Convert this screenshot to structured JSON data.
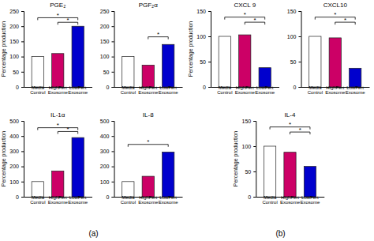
{
  "chart_data": [
    {
      "type": "bar",
      "title": "PGE₂",
      "categories": [
        "Media\nControl",
        "HighFert\nExosome",
        "LowFert\nExosome"
      ],
      "values": [
        100,
        110,
        200
      ],
      "colors": [
        "#ffffff",
        "#cc0066",
        "#0000cd"
      ],
      "ylim": [
        0,
        250
      ],
      "yticks": [
        0,
        50,
        100,
        150,
        200,
        250
      ],
      "ylabel": "Percentage production",
      "annotations": [
        {
          "text": "*",
          "x_from": "Media\nControl",
          "x_to": "LowFert\nExosome",
          "y": 228
        },
        {
          "text": "*",
          "x_from": "HighFert\nExosome",
          "x_to": "LowFert\nExosome",
          "y": 213
        },
        {
          "text": "(a)"
        }
      ]
    },
    {
      "type": "bar",
      "title": "PGF₂α",
      "categories": [
        "Media\nControl",
        "HighFert\nExosome",
        "LowFert\nExosome"
      ],
      "values": [
        100,
        72,
        140
      ],
      "colors": [
        "#ffffff",
        "#cc0066",
        "#0000cd"
      ],
      "ylim": [
        0,
        250
      ],
      "yticks": [
        0,
        50,
        100,
        150,
        200,
        250
      ],
      "annotations": [
        {
          "text": "*",
          "x_from": "HighFert\nExosome",
          "x_to": "LowFert\nExosome",
          "y": 165
        }
      ]
    },
    {
      "type": "bar",
      "title": "IL-1α",
      "categories": [
        "Media\nControl",
        "HighFert\nExosome",
        "LowFert\nExosome"
      ],
      "values": [
        100,
        170,
        390
      ],
      "colors": [
        "#ffffff",
        "#cc0066",
        "#0000cd"
      ],
      "ylim": [
        0,
        500
      ],
      "yticks": [
        0,
        100,
        200,
        300,
        400,
        500
      ],
      "ylabel": "Percentage production",
      "annotations": [
        {
          "text": "*",
          "x_from": "Media\nControl",
          "x_to": "LowFert\nExosome",
          "y": 455
        },
        {
          "text": "*",
          "x_from": "HighFert\nExosome",
          "x_to": "LowFert\nExosome",
          "y": 430
        }
      ]
    },
    {
      "type": "bar",
      "title": "IL-8",
      "categories": [
        "Media\nControl",
        "HighFert\nExosome",
        "LowFert\nExosome"
      ],
      "values": [
        100,
        135,
        295
      ],
      "colors": [
        "#ffffff",
        "#cc0066",
        "#0000cd"
      ],
      "ylim": [
        0,
        500
      ],
      "yticks": [
        0,
        100,
        200,
        300,
        400,
        500
      ],
      "annotations": [
        {
          "text": "*",
          "x_from": "Media\nControl",
          "x_to": "LowFert\nExosome",
          "y": 345
        }
      ]
    },
    {
      "type": "bar",
      "title": "CXCL 9",
      "categories": [
        "Media\nControl",
        "HighFert\nExosome",
        "LowFert\nExosome"
      ],
      "values": [
        100,
        103,
        38
      ],
      "colors": [
        "#ffffff",
        "#cc0066",
        "#0000cd"
      ],
      "ylim": [
        0,
        150
      ],
      "yticks": [
        0,
        50,
        100,
        150
      ],
      "ylabel": "Percentage production",
      "annotations": [
        {
          "text": "*",
          "x_from": "Media\nControl",
          "x_to": "LowFert\nExosome",
          "y": 138
        },
        {
          "text": "*",
          "x_from": "HighFert\nExosome",
          "x_to": "LowFert\nExosome",
          "y": 128
        },
        {
          "text": "(b)"
        }
      ]
    },
    {
      "type": "bar",
      "title": "CXCL10",
      "categories": [
        "Media\nControl",
        "HighFert\nExosome",
        "LowFert\nExosome"
      ],
      "values": [
        100,
        97,
        37
      ],
      "colors": [
        "#ffffff",
        "#cc0066",
        "#0000cd"
      ],
      "ylim": [
        0,
        150
      ],
      "yticks": [
        0,
        50,
        100,
        150
      ],
      "annotations": [
        {
          "text": "*",
          "x_from": "Media\nControl",
          "x_to": "LowFert\nExosome",
          "y": 138
        },
        {
          "text": "*",
          "x_from": "HighFert\nExosome",
          "x_to": "LowFert\nExosome",
          "y": 128
        }
      ]
    },
    {
      "type": "bar",
      "title": "IL-4",
      "categories": [
        "Media\nControl",
        "HighFert\nExosome",
        "LowFert\nExosome"
      ],
      "values": [
        100,
        88,
        60
      ],
      "colors": [
        "#ffffff",
        "#cc0066",
        "#0000cd"
      ],
      "ylim": [
        0,
        150
      ],
      "yticks": [
        0,
        50,
        100,
        150
      ],
      "ylabel": "Percentage production",
      "annotations": [
        {
          "text": "*",
          "x_from": "Media\nControl",
          "x_to": "LowFert\nExosome",
          "y": 138
        },
        {
          "text": "*",
          "x_from": "HighFert\nExosome",
          "x_to": "LowFert\nExosome",
          "y": 128
        }
      ]
    }
  ]
}
